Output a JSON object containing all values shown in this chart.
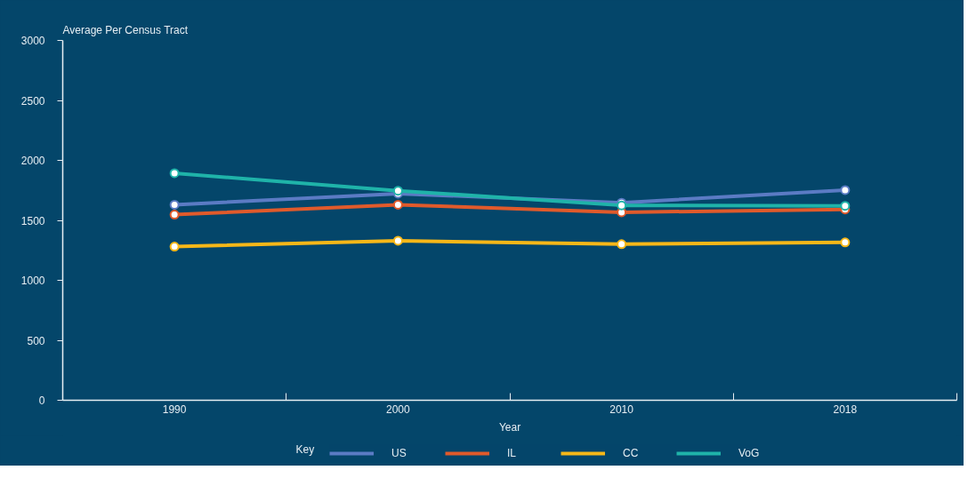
{
  "chart_data": {
    "type": "line",
    "ylabel": "Average Per Census Tract",
    "xlabel": "Year",
    "legend_title": "Key",
    "categories": [
      "1990",
      "2000",
      "2010",
      "2018"
    ],
    "series": [
      {
        "name": "US",
        "color": "#5b7bc4",
        "values": [
          1630,
          1723,
          1647,
          1752
        ]
      },
      {
        "name": "IL",
        "color": "#e05a2b",
        "values": [
          1548,
          1630,
          1567,
          1591
        ]
      },
      {
        "name": "CC",
        "color": "#f7b718",
        "values": [
          1281,
          1330,
          1301,
          1316
        ]
      },
      {
        "name": "VoG",
        "color": "#1fb3a9",
        "values": [
          1893,
          1747,
          1625,
          1621
        ]
      }
    ],
    "ylim": [
      0,
      3000
    ],
    "yticks": [
      0,
      500,
      1000,
      1500,
      2000,
      2500,
      3000
    ],
    "grid": false,
    "legend": "bottom",
    "marker": "circle",
    "line_style": "solid"
  }
}
